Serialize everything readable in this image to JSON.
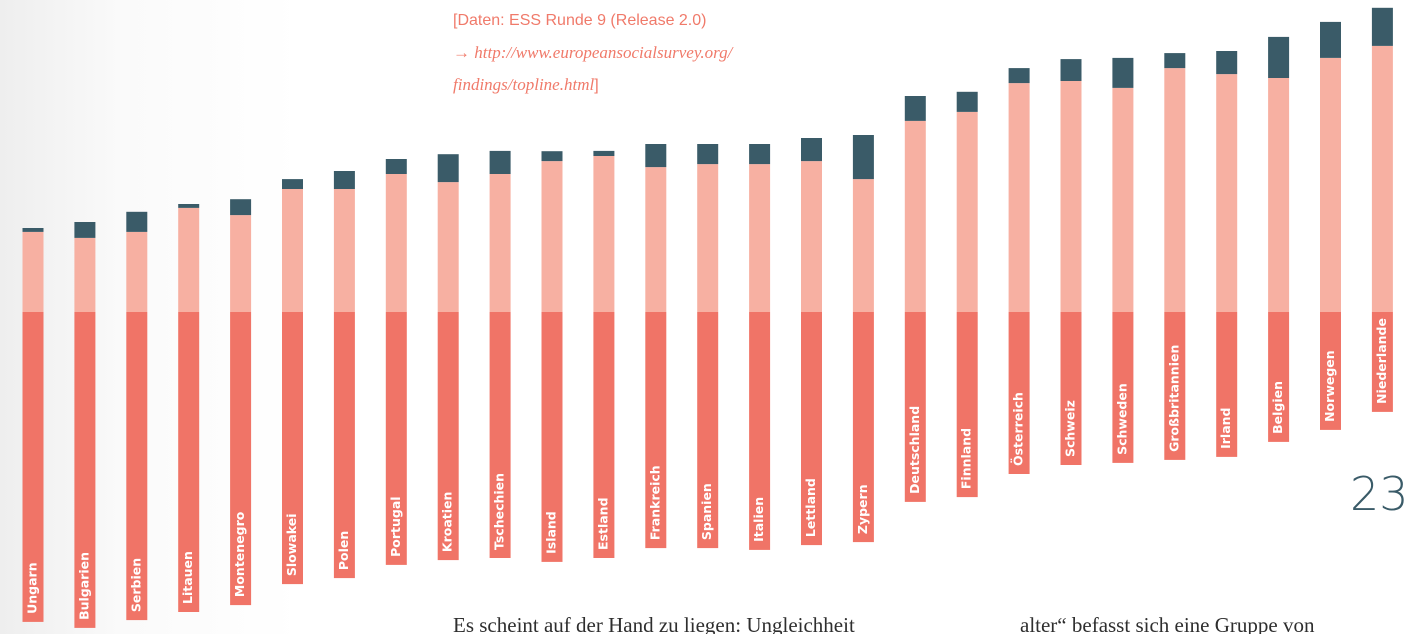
{
  "chart_data": {
    "type": "diverging-stacked-bar",
    "categories": [
      "Ungarn",
      "Bulgarien",
      "Serbien",
      "Litauen",
      "Montenegro",
      "Slowakei",
      "Polen",
      "Portugal",
      "Kroatien",
      "Tschechien",
      "Island",
      "Estland",
      "Frankreich",
      "Spanien",
      "Italien",
      "Lettland",
      "Zypern",
      "Deutschland",
      "Finnland",
      "Österreich",
      "Schweiz",
      "Schweden",
      "Großbritannien",
      "Irland",
      "Belgien",
      "Norwegen",
      "Niederlande"
    ],
    "series": [
      {
        "color": "#f07467",
        "direction": "down",
        "values": [
          103.3,
          105.3,
          102.7,
          100,
          97.7,
          90.7,
          88.7,
          84.3,
          82.7,
          82,
          83.3,
          82,
          78.7,
          78.7,
          79.3,
          77.7,
          76.7,
          63.3,
          61.7,
          54,
          51,
          50.3,
          49.3,
          48.3,
          43.3,
          39.3,
          33.3
        ]
      },
      {
        "color": "#f7b0a2",
        "direction": "up",
        "values": [
          26.7,
          24.7,
          26.7,
          34.7,
          32.3,
          41,
          41,
          46,
          43.3,
          46,
          50.3,
          52,
          48.3,
          49.3,
          49.3,
          50.3,
          44.3,
          63.7,
          66.7,
          76.3,
          77,
          74.7,
          81.3,
          79.3,
          78,
          84.7,
          88.7
        ]
      },
      {
        "color": "#3a5b68",
        "direction": "up",
        "values": [
          1.3,
          5.3,
          6.7,
          1.3,
          5.3,
          3.3,
          6,
          5,
          9.3,
          7.7,
          3.3,
          1.7,
          7.7,
          6.7,
          6.7,
          7.7,
          14.7,
          8.3,
          6.7,
          5,
          7.3,
          10,
          5,
          7.7,
          13.7,
          12,
          12.7
        ]
      }
    ],
    "source": {
      "line1": "[Daten: ESS Runde 9 (Release 2.0)",
      "line2": "→ http://www.europeansocialsurvey.org/",
      "line3": "findings/topline.html",
      "close": "]"
    }
  },
  "page_number": "23",
  "body_text": {
    "column1": "Es scheint auf der Hand zu liegen: Ungleichheit",
    "column2": "alter“ befasst sich eine Gruppe von"
  }
}
